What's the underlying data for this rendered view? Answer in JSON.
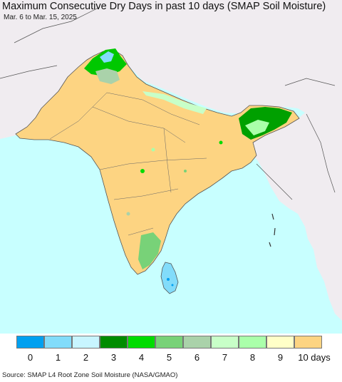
{
  "map": {
    "title": "Maximum Consecutive Dry Days in past 10 days (SMAP Soil Moisture)",
    "subtitle": "Mar. 6 to Mar. 15, 2025",
    "source": "Source: SMAP L4 Root Zone Soil Moisture (NASA/GMAO)"
  },
  "legend": {
    "items": [
      {
        "label": "0",
        "color": "#00a0f0"
      },
      {
        "label": "1",
        "color": "#82dcfa"
      },
      {
        "label": "2",
        "color": "#c8f5ff"
      },
      {
        "label": "3",
        "color": "#008c00"
      },
      {
        "label": "4",
        "color": "#00dc00"
      },
      {
        "label": "5",
        "color": "#78d278"
      },
      {
        "label": "6",
        "color": "#aad2aa"
      },
      {
        "label": "7",
        "color": "#c8ffc8"
      },
      {
        "label": "8",
        "color": "#aaffaa"
      },
      {
        "label": "9",
        "color": "#ffffc8"
      },
      {
        "label": "10 days",
        "color": "#fdd482"
      }
    ]
  },
  "colors": {
    "ocean": "#c8ffff",
    "outside_land": "#f0ecf0",
    "dry_land": "#fdd482",
    "border": "#444444"
  }
}
